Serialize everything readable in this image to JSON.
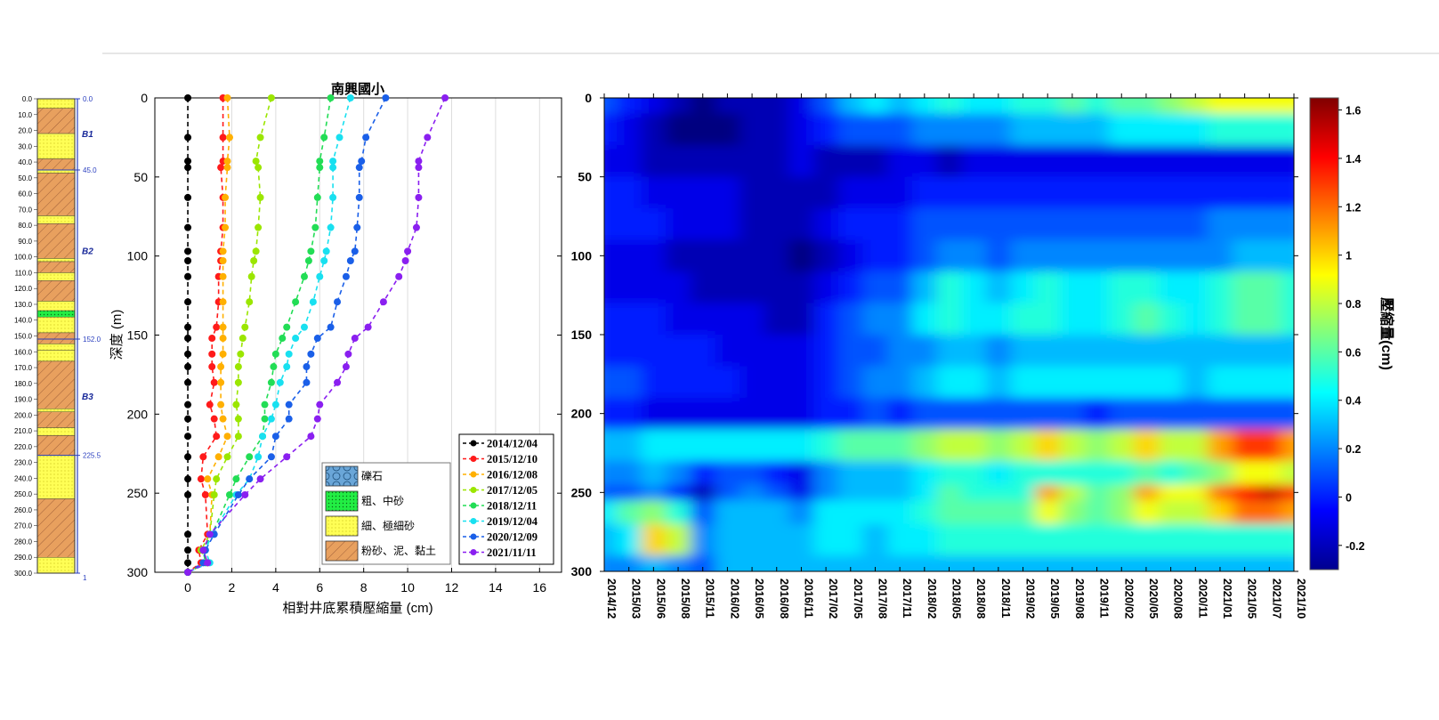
{
  "colors": {
    "black": "#000000",
    "red": "#ff1a1a",
    "orange": "#ffb000",
    "yellowgreen": "#9be600",
    "green": "#22dd55",
    "cyan": "#18e0f0",
    "blue": "#1a5fe8",
    "purple": "#8a1ff0",
    "clay": "#e8a05e",
    "sand": "#ffff55",
    "coarse": "#22ee44",
    "gravel": "#6aa6d8",
    "gridline": "#dddddd"
  },
  "column": {
    "depth_ticks": [
      "0.0",
      "10.0",
      "20.0",
      "30.0",
      "40.0",
      "50.0",
      "60.0",
      "70.0",
      "80.0",
      "90.0",
      "100.0",
      "110.0",
      "120.0",
      "130.0",
      "140.0",
      "150.0",
      "160.0",
      "170.0",
      "180.0",
      "190.0",
      "200.0",
      "210.0",
      "220.0",
      "230.0",
      "240.0",
      "250.0",
      "260.0",
      "270.0",
      "280.0",
      "290.0",
      "300.0"
    ],
    "boundary_labels": [
      "0.0",
      "45.0",
      "152.0",
      "225.5",
      "1"
    ],
    "unit_labels": [
      "B1",
      "B2",
      "B3"
    ],
    "layers": [
      {
        "top": 0,
        "bottom": 6,
        "type": "sand"
      },
      {
        "top": 6,
        "bottom": 22,
        "type": "clay"
      },
      {
        "top": 22,
        "bottom": 38,
        "type": "sand"
      },
      {
        "top": 38,
        "bottom": 45,
        "type": "clay"
      },
      {
        "top": 45,
        "bottom": 47,
        "type": "sand"
      },
      {
        "top": 47,
        "bottom": 74,
        "type": "clay"
      },
      {
        "top": 74,
        "bottom": 79,
        "type": "sand"
      },
      {
        "top": 79,
        "bottom": 101,
        "type": "clay"
      },
      {
        "top": 101,
        "bottom": 103,
        "type": "sand"
      },
      {
        "top": 103,
        "bottom": 110,
        "type": "clay"
      },
      {
        "top": 110,
        "bottom": 115,
        "type": "sand"
      },
      {
        "top": 115,
        "bottom": 128,
        "type": "clay"
      },
      {
        "top": 128,
        "bottom": 134,
        "type": "sand"
      },
      {
        "top": 134,
        "bottom": 138,
        "type": "coarse"
      },
      {
        "top": 138,
        "bottom": 148,
        "type": "sand"
      },
      {
        "top": 148,
        "bottom": 155,
        "type": "clay"
      },
      {
        "top": 155,
        "bottom": 159,
        "type": "sand"
      },
      {
        "top": 159,
        "bottom": 166,
        "type": "sand"
      },
      {
        "top": 166,
        "bottom": 196,
        "type": "clay"
      },
      {
        "top": 196,
        "bottom": 198,
        "type": "sand"
      },
      {
        "top": 198,
        "bottom": 208,
        "type": "clay"
      },
      {
        "top": 208,
        "bottom": 213,
        "type": "sand"
      },
      {
        "top": 213,
        "bottom": 225.5,
        "type": "clay"
      },
      {
        "top": 225.5,
        "bottom": 253,
        "type": "sand"
      },
      {
        "top": 253,
        "bottom": 290,
        "type": "clay"
      },
      {
        "top": 290,
        "bottom": 300,
        "type": "sand"
      }
    ]
  },
  "profile": {
    "title": "南興國小",
    "xlabel": "相對井底累積壓縮量 (cm)",
    "ylabel": "深度 (m)",
    "xticks": [
      "0",
      "2",
      "4",
      "6",
      "8",
      "10",
      "12",
      "14",
      "16"
    ],
    "yticks": [
      "0",
      "50",
      "100",
      "150",
      "200",
      "250",
      "300"
    ],
    "soil_legend": [
      {
        "label": "礫石",
        "type": "gravel"
      },
      {
        "label": "粗、中砂",
        "type": "coarse"
      },
      {
        "label": "細、極細砂",
        "type": "sand"
      },
      {
        "label": "粉砂、泥、黏土",
        "type": "clay"
      }
    ]
  },
  "heatmap": {
    "yticks": [
      "0",
      "50",
      "100",
      "150",
      "200",
      "250",
      "300"
    ],
    "xticks": [
      "2014/12",
      "2015/03",
      "2015/06",
      "2015/08",
      "2015/11",
      "2016/02",
      "2016/05",
      "2016/08",
      "2016/11",
      "2017/02",
      "2017/05",
      "2017/08",
      "2017/11",
      "2018/02",
      "2018/05",
      "2018/08",
      "2018/11",
      "2019/02",
      "2019/05",
      "2019/08",
      "2019/11",
      "2020/02",
      "2020/05",
      "2020/08",
      "2020/11",
      "2021/01",
      "2021/05",
      "2021/07",
      "2021/10"
    ],
    "colorbar_label": "壓縮量(cm)",
    "colorbar_ticks": [
      "1.6",
      "1.4",
      "1.2",
      "1",
      "0.8",
      "0.6",
      "0.4",
      "0.2",
      "0",
      "-0.2"
    ]
  },
  "chart_data": [
    {
      "type": "line",
      "title": "南興國小",
      "xlabel": "相對井底累積壓縮量 (cm)",
      "ylabel": "深度 (m)",
      "xlim": [
        -1.5,
        17
      ],
      "ylim": [
        300,
        0
      ],
      "grid": true,
      "legend_position": "bottom-right",
      "depths": [
        0,
        25,
        40,
        44,
        63,
        82,
        97,
        103,
        113,
        129,
        145,
        152,
        162,
        170,
        180,
        194,
        203,
        214,
        227,
        241,
        251,
        276,
        286,
        294,
        300
      ],
      "series": [
        {
          "name": "2014/12/04",
          "color": "#000000",
          "x": [
            0,
            0,
            0,
            0,
            0,
            0,
            0,
            0,
            0,
            0,
            0,
            0,
            0,
            0,
            0,
            0,
            0,
            0,
            0,
            0,
            0,
            0,
            0,
            0,
            0
          ]
        },
        {
          "name": "2015/12/10",
          "color": "#ff1a1a",
          "x": [
            1.6,
            1.6,
            1.6,
            1.5,
            1.6,
            1.6,
            1.5,
            1.5,
            1.4,
            1.4,
            1.3,
            1.1,
            1.1,
            1.1,
            1.2,
            1.0,
            1.2,
            1.3,
            0.7,
            0.6,
            0.8,
            0.9,
            0.5,
            0.6,
            0
          ]
        },
        {
          "name": "2016/12/08",
          "color": "#ffb000",
          "x": [
            1.8,
            1.9,
            1.8,
            1.8,
            1.7,
            1.7,
            1.6,
            1.6,
            1.6,
            1.6,
            1.6,
            1.6,
            1.6,
            1.5,
            1.5,
            1.5,
            1.6,
            1.8,
            1.4,
            0.9,
            1.1,
            1.0,
            0.7,
            0.9,
            0
          ]
        },
        {
          "name": "2017/12/05",
          "color": "#9be600",
          "x": [
            3.8,
            3.3,
            3.1,
            3.2,
            3.3,
            3.2,
            3.1,
            3.0,
            2.9,
            2.8,
            2.6,
            2.5,
            2.4,
            2.3,
            2.3,
            2.2,
            2.3,
            2.3,
            1.8,
            1.3,
            1.2,
            1.0,
            0.6,
            0.9,
            0
          ]
        },
        {
          "name": "2018/12/11",
          "color": "#22dd55",
          "x": [
            6.5,
            6.2,
            6.0,
            6.0,
            5.9,
            5.8,
            5.6,
            5.5,
            5.3,
            4.9,
            4.5,
            4.3,
            4.0,
            3.9,
            3.8,
            3.5,
            3.5,
            3.4,
            2.8,
            2.2,
            1.9,
            1.1,
            0.7,
            0.8,
            0
          ]
        },
        {
          "name": "2019/12/04",
          "color": "#18e0f0",
          "x": [
            7.4,
            6.9,
            6.6,
            6.6,
            6.6,
            6.5,
            6.3,
            6.2,
            6.0,
            5.7,
            5.3,
            4.9,
            4.6,
            4.5,
            4.2,
            4.0,
            3.8,
            3.4,
            3.2,
            2.8,
            2.2,
            1.1,
            0.8,
            1.0,
            0
          ]
        },
        {
          "name": "2020/12/09",
          "color": "#1a5fe8",
          "x": [
            9.0,
            8.1,
            7.9,
            7.8,
            7.8,
            7.7,
            7.6,
            7.4,
            7.2,
            6.8,
            6.5,
            5.9,
            5.6,
            5.4,
            5.4,
            4.6,
            4.6,
            4.0,
            3.8,
            2.8,
            2.3,
            1.2,
            0.8,
            0.7,
            0
          ]
        },
        {
          "name": "2021/11/11",
          "color": "#8a1ff0",
          "x": [
            11.7,
            10.9,
            10.5,
            10.5,
            10.5,
            10.4,
            10.0,
            9.9,
            9.6,
            8.9,
            8.2,
            7.6,
            7.3,
            7.2,
            6.8,
            6.0,
            5.9,
            5.6,
            4.5,
            3.3,
            2.6,
            1.0,
            0.7,
            0.9,
            0
          ]
        }
      ]
    },
    {
      "type": "heatmap",
      "xlabel": "",
      "ylabel": "",
      "ylim": [
        300,
        0
      ],
      "x_categories": [
        "2014/12",
        "2015/03",
        "2015/06",
        "2015/08",
        "2015/11",
        "2016/02",
        "2016/05",
        "2016/08",
        "2016/11",
        "2017/02",
        "2017/05",
        "2017/08",
        "2017/11",
        "2018/02",
        "2018/05",
        "2018/08",
        "2018/11",
        "2019/02",
        "2019/05",
        "2019/08",
        "2019/11",
        "2020/02",
        "2020/05",
        "2020/08",
        "2020/11",
        "2021/01",
        "2021/05",
        "2021/07",
        "2021/10"
      ],
      "depth_levels": [
        0,
        20,
        40,
        60,
        80,
        100,
        120,
        140,
        160,
        180,
        200,
        220,
        240,
        250,
        260,
        280,
        300
      ],
      "values": [
        [
          0.1,
          0.0,
          -0.1,
          -0.2,
          -0.3,
          -0.2,
          -0.2,
          -0.2,
          -0.1,
          0.1,
          0.3,
          0.4,
          0.3,
          0.4,
          0.5,
          0.4,
          0.4,
          0.5,
          0.5,
          0.6,
          0.5,
          0.6,
          0.6,
          0.7,
          0.8,
          0.9,
          0.9,
          0.9,
          0.9
        ],
        [
          0.0,
          -0.1,
          -0.2,
          -0.3,
          -0.3,
          -0.3,
          -0.2,
          -0.2,
          -0.1,
          0.0,
          0.1,
          0.1,
          0.1,
          0.2,
          0.2,
          0.2,
          0.2,
          0.3,
          0.3,
          0.3,
          0.3,
          0.4,
          0.4,
          0.4,
          0.4,
          0.5,
          0.5,
          0.5,
          0.5
        ],
        [
          -0.1,
          -0.1,
          -0.2,
          -0.2,
          -0.2,
          -0.2,
          -0.2,
          -0.2,
          -0.1,
          -0.2,
          -0.2,
          -0.2,
          -0.1,
          -0.1,
          -0.2,
          -0.1,
          -0.1,
          -0.1,
          -0.1,
          -0.1,
          -0.1,
          -0.1,
          -0.1,
          -0.1,
          -0.1,
          -0.1,
          -0.1,
          -0.1,
          -0.1
        ],
        [
          0.0,
          0.0,
          -0.1,
          -0.1,
          -0.1,
          -0.1,
          -0.2,
          -0.2,
          -0.2,
          -0.2,
          -0.1,
          -0.1,
          -0.1,
          0.0,
          0.0,
          0.0,
          0.0,
          0.0,
          0.0,
          0.0,
          0.0,
          0.0,
          0.0,
          0.0,
          0.0,
          0.0,
          0.0,
          0.0,
          0.0
        ],
        [
          0.0,
          0.0,
          0.0,
          -0.1,
          -0.1,
          -0.1,
          -0.2,
          -0.2,
          -0.2,
          -0.1,
          0.0,
          0.0,
          0.0,
          0.1,
          0.1,
          0.1,
          0.1,
          0.1,
          0.1,
          0.1,
          0.1,
          0.1,
          0.1,
          0.1,
          0.1,
          0.2,
          0.2,
          0.2,
          0.2
        ],
        [
          -0.1,
          -0.1,
          -0.1,
          -0.2,
          -0.2,
          -0.2,
          -0.2,
          -0.2,
          -0.3,
          -0.2,
          -0.1,
          0.0,
          0.0,
          0.1,
          0.2,
          0.2,
          0.1,
          0.2,
          0.2,
          0.2,
          0.2,
          0.2,
          0.2,
          0.2,
          0.2,
          0.2,
          0.3,
          0.3,
          0.3
        ],
        [
          -0.1,
          -0.1,
          -0.1,
          -0.1,
          -0.2,
          -0.2,
          -0.2,
          -0.2,
          -0.2,
          -0.1,
          0.0,
          0.1,
          0.1,
          0.3,
          0.5,
          0.4,
          0.3,
          0.4,
          0.5,
          0.4,
          0.4,
          0.5,
          0.5,
          0.4,
          0.4,
          0.5,
          0.6,
          0.6,
          0.5
        ],
        [
          0.0,
          0.0,
          0.0,
          -0.1,
          -0.1,
          -0.1,
          -0.1,
          -0.2,
          -0.2,
          0.0,
          0.1,
          0.2,
          0.2,
          0.4,
          0.5,
          0.4,
          0.4,
          0.5,
          0.5,
          0.4,
          0.4,
          0.5,
          0.6,
          0.5,
          0.4,
          0.5,
          0.6,
          0.6,
          0.5
        ],
        [
          0.0,
          0.0,
          0.0,
          0.0,
          0.0,
          -0.1,
          -0.1,
          -0.1,
          -0.1,
          0.0,
          0.1,
          0.1,
          0.2,
          0.2,
          0.3,
          0.3,
          0.2,
          0.3,
          0.3,
          0.3,
          0.3,
          0.3,
          0.3,
          0.3,
          0.3,
          0.3,
          0.3,
          0.3,
          0.3
        ],
        [
          0.1,
          0.1,
          0.0,
          0.0,
          0.0,
          0.0,
          -0.1,
          -0.1,
          -0.1,
          0.0,
          0.1,
          0.2,
          0.2,
          0.3,
          0.4,
          0.4,
          0.3,
          0.4,
          0.4,
          0.4,
          0.4,
          0.4,
          0.4,
          0.4,
          0.3,
          0.4,
          0.4,
          0.4,
          0.4
        ],
        [
          0.0,
          0.0,
          -0.1,
          -0.1,
          -0.1,
          -0.1,
          -0.1,
          -0.1,
          -0.1,
          0.0,
          0.0,
          0.1,
          0.0,
          0.1,
          0.1,
          0.1,
          0.1,
          0.1,
          0.1,
          0.1,
          0.0,
          0.1,
          0.1,
          0.1,
          0.1,
          0.1,
          0.1,
          0.1,
          0.1
        ],
        [
          0.3,
          0.3,
          0.4,
          0.4,
          0.4,
          0.4,
          0.4,
          0.4,
          0.4,
          0.5,
          0.6,
          0.6,
          0.6,
          0.7,
          0.8,
          0.8,
          0.7,
          0.8,
          1.0,
          0.8,
          0.7,
          0.8,
          1.0,
          0.8,
          0.8,
          1.1,
          1.3,
          1.3,
          1.1
        ],
        [
          0.2,
          0.2,
          0.3,
          0.2,
          0.0,
          0.1,
          0.1,
          0.0,
          -0.1,
          0.2,
          0.3,
          0.3,
          0.3,
          0.4,
          0.5,
          0.5,
          0.4,
          0.5,
          0.5,
          0.5,
          0.5,
          0.5,
          0.6,
          0.5,
          0.6,
          0.7,
          0.9,
          0.9,
          0.8
        ],
        [
          0.1,
          0.1,
          0.2,
          0.0,
          -0.2,
          0.1,
          0.2,
          0.1,
          -0.1,
          0.2,
          0.3,
          0.3,
          0.3,
          0.4,
          0.6,
          0.5,
          0.5,
          0.5,
          1.1,
          0.8,
          0.6,
          0.7,
          1.1,
          0.9,
          0.9,
          1.2,
          1.4,
          1.5,
          1.3
        ],
        [
          0.4,
          0.6,
          0.7,
          0.5,
          0.1,
          0.3,
          0.3,
          0.3,
          0.2,
          0.4,
          0.4,
          0.4,
          0.4,
          0.5,
          0.6,
          0.6,
          0.6,
          0.6,
          0.9,
          0.7,
          0.6,
          0.7,
          0.9,
          0.8,
          0.8,
          1.0,
          1.2,
          1.2,
          1.1
        ],
        [
          0.3,
          0.4,
          1.0,
          0.8,
          0.2,
          0.3,
          0.3,
          0.3,
          0.3,
          0.4,
          0.4,
          0.3,
          0.4,
          0.4,
          0.5,
          0.5,
          0.5,
          0.5,
          0.5,
          0.5,
          0.5,
          0.5,
          0.5,
          0.5,
          0.5,
          0.5,
          0.5,
          0.5,
          0.5
        ],
        [
          0.2,
          0.2,
          0.3,
          0.2,
          0.1,
          0.3,
          0.3,
          0.3,
          0.3,
          0.3,
          0.3,
          0.3,
          0.3,
          0.3,
          0.3,
          0.3,
          0.3,
          0.3,
          0.3,
          0.3,
          0.3,
          0.3,
          0.3,
          0.3,
          0.3,
          0.3,
          0.3,
          0.3,
          0.3
        ]
      ],
      "colorbar": {
        "label": "壓縮量(cm)",
        "min": -0.3,
        "max": 1.65,
        "colormap": "jet"
      }
    }
  ]
}
